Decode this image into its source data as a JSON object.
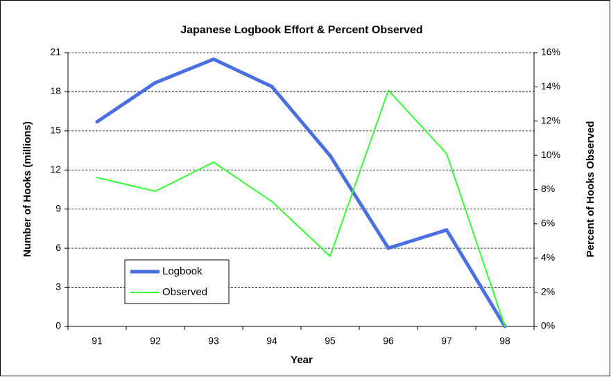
{
  "chart_data": {
    "type": "line",
    "title": "Japanese Logbook  Effort & Percent Observed",
    "x_label": "Year",
    "y_label": "Number of Hooks (millions)",
    "y2_label": "Percent of Hooks Observed",
    "categories": [
      "91",
      "92",
      "93",
      "94",
      "95",
      "96",
      "97",
      "98"
    ],
    "series": [
      {
        "name": "Logbook",
        "color": "#4a6fe3",
        "values": [
          15.7,
          18.7,
          20.5,
          18.4,
          13.1,
          6.0,
          7.4,
          0
        ]
      },
      {
        "name": "Observed",
        "color": "#33ff33",
        "axis": "y2",
        "values": [
          8.7,
          7.9,
          9.6,
          7.3,
          4.1,
          13.8,
          10.1,
          0
        ]
      }
    ],
    "ylim": [
      0,
      21
    ],
    "yticks": [
      0,
      3,
      6,
      9,
      12,
      15,
      18,
      21
    ],
    "y2lim": [
      0,
      16
    ],
    "y2ticks": [
      {
        "value": 0,
        "label": "0%"
      },
      {
        "value": 2,
        "label": "2%"
      },
      {
        "value": 4,
        "label": "4%"
      },
      {
        "value": 6,
        "label": "6%"
      },
      {
        "value": 8,
        "label": "8%"
      },
      {
        "value": 10,
        "label": "10%"
      },
      {
        "value": 12,
        "label": "12%"
      },
      {
        "value": 14,
        "label": "14%"
      },
      {
        "value": 16,
        "label": "16%"
      }
    ],
    "grid": true,
    "legend_position": "lower left"
  }
}
